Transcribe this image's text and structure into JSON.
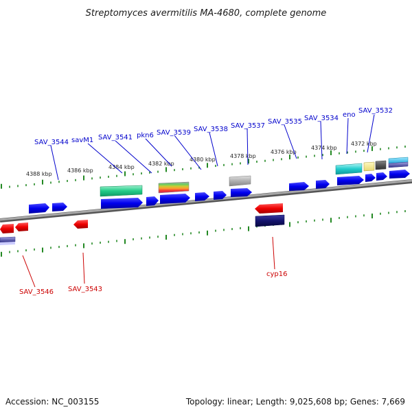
{
  "title": "Streptomyces avermitilis MA-4680, complete genome",
  "footer": {
    "accession": "Accession: NC_003155",
    "summary": "Topology: linear; Length: 9,025,608 bp; Genes: 7,669"
  },
  "scale_labels": [
    "4388 kbp",
    "4386 kbp",
    "4384 kbp",
    "4382 kbp",
    "4380 kbp",
    "4378 kbp",
    "4376 kbp",
    "4374 kbp",
    "4372 kbp"
  ],
  "colors": {
    "forward_label": "#0000cc",
    "reverse_label": "#cc0000",
    "tick": "#228822",
    "backbone": "#888888"
  },
  "forward_genes": [
    "SAV_3544",
    "savM1",
    "SAV_3541",
    "pkn6",
    "SAV_3539",
    "SAV_3538",
    "SAV_3537",
    "SAV_3535",
    "SAV_3534",
    "eno",
    "SAV_3532"
  ],
  "reverse_genes": [
    "SAV_3546",
    "SAV_3543",
    "cyp16"
  ]
}
